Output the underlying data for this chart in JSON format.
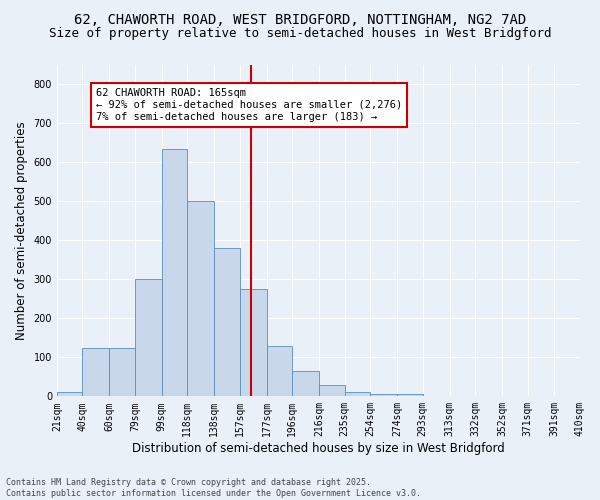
{
  "title_line1": "62, CHAWORTH ROAD, WEST BRIDGFORD, NOTTINGHAM, NG2 7AD",
  "title_line2": "Size of property relative to semi-detached houses in West Bridgford",
  "xlabel": "Distribution of semi-detached houses by size in West Bridgford",
  "ylabel": "Number of semi-detached properties",
  "footnote": "Contains HM Land Registry data © Crown copyright and database right 2025.\nContains public sector information licensed under the Open Government Licence v3.0.",
  "bin_labels": [
    "21sqm",
    "40sqm",
    "60sqm",
    "79sqm",
    "99sqm",
    "118sqm",
    "138sqm",
    "157sqm",
    "177sqm",
    "196sqm",
    "216sqm",
    "235sqm",
    "254sqm",
    "274sqm",
    "293sqm",
    "313sqm",
    "332sqm",
    "352sqm",
    "371sqm",
    "391sqm",
    "410sqm"
  ],
  "bin_edges": [
    21,
    40,
    60,
    79,
    99,
    118,
    138,
    157,
    177,
    196,
    216,
    235,
    254,
    274,
    293,
    313,
    332,
    352,
    371,
    391,
    410
  ],
  "bar_heights": [
    10,
    125,
    125,
    300,
    635,
    500,
    380,
    275,
    130,
    65,
    30,
    12,
    5,
    5,
    0,
    0,
    0,
    0,
    0,
    0
  ],
  "bar_color": "#c8d8ea",
  "bar_edgecolor": "#5b8db8",
  "vline_x": 165,
  "vline_color": "#cc0000",
  "annotation_text": "62 CHAWORTH ROAD: 165sqm\n← 92% of semi-detached houses are smaller (2,276)\n7% of semi-detached houses are larger (183) →",
  "annotation_box_edgecolor": "#cc0000",
  "annotation_box_facecolor": "#ffffff",
  "ylim": [
    0,
    850
  ],
  "yticks": [
    0,
    100,
    200,
    300,
    400,
    500,
    600,
    700,
    800
  ],
  "background_color": "#eaf0f8",
  "grid_color": "#ffffff",
  "title_fontsize": 10,
  "subtitle_fontsize": 9,
  "axis_label_fontsize": 8.5,
  "tick_fontsize": 7,
  "annot_fontsize": 7.5
}
